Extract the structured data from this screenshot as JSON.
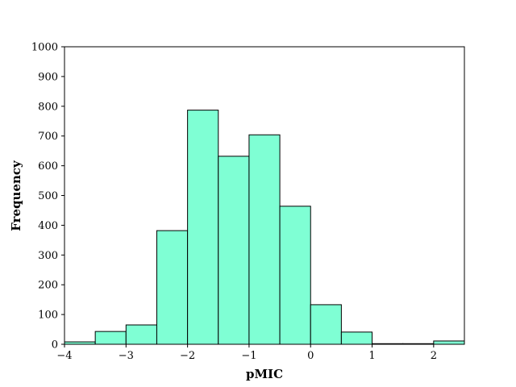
{
  "chart_data": {
    "type": "bar",
    "xlabel": "pMIC",
    "ylabel": "Frequency",
    "xlim": [
      -4,
      2.5
    ],
    "ylim": [
      0,
      1000
    ],
    "x_ticks": [
      -4,
      -3,
      -2,
      -1,
      0,
      1,
      2
    ],
    "x_tick_labels": [
      "−4",
      "−3",
      "−2",
      "−1",
      "0",
      "1",
      "2"
    ],
    "y_ticks": [
      0,
      100,
      200,
      300,
      400,
      500,
      600,
      700,
      800,
      900,
      1000
    ],
    "y_tick_labels": [
      "0",
      "100",
      "200",
      "300",
      "400",
      "500",
      "600",
      "700",
      "800",
      "900",
      "1000"
    ],
    "grid": false,
    "legend": "none",
    "bar_color": "#7fffd4",
    "edge_color": "#000000",
    "bins": [
      {
        "x0": -4.0,
        "x1": -3.5,
        "value": 8
      },
      {
        "x0": -3.5,
        "x1": -3.0,
        "value": 43
      },
      {
        "x0": -3.0,
        "x1": -2.5,
        "value": 65
      },
      {
        "x0": -2.5,
        "x1": -2.0,
        "value": 382
      },
      {
        "x0": -2.0,
        "x1": -1.5,
        "value": 787
      },
      {
        "x0": -1.5,
        "x1": -1.0,
        "value": 632
      },
      {
        "x0": -1.0,
        "x1": -0.5,
        "value": 704
      },
      {
        "x0": -0.5,
        "x1": 0.0,
        "value": 464
      },
      {
        "x0": 0.0,
        "x1": 0.5,
        "value": 133
      },
      {
        "x0": 0.5,
        "x1": 1.0,
        "value": 41
      },
      {
        "x0": 1.0,
        "x1": 1.5,
        "value": 2
      },
      {
        "x0": 1.5,
        "x1": 2.0,
        "value": 2
      },
      {
        "x0": 2.0,
        "x1": 2.5,
        "value": 11
      }
    ]
  }
}
